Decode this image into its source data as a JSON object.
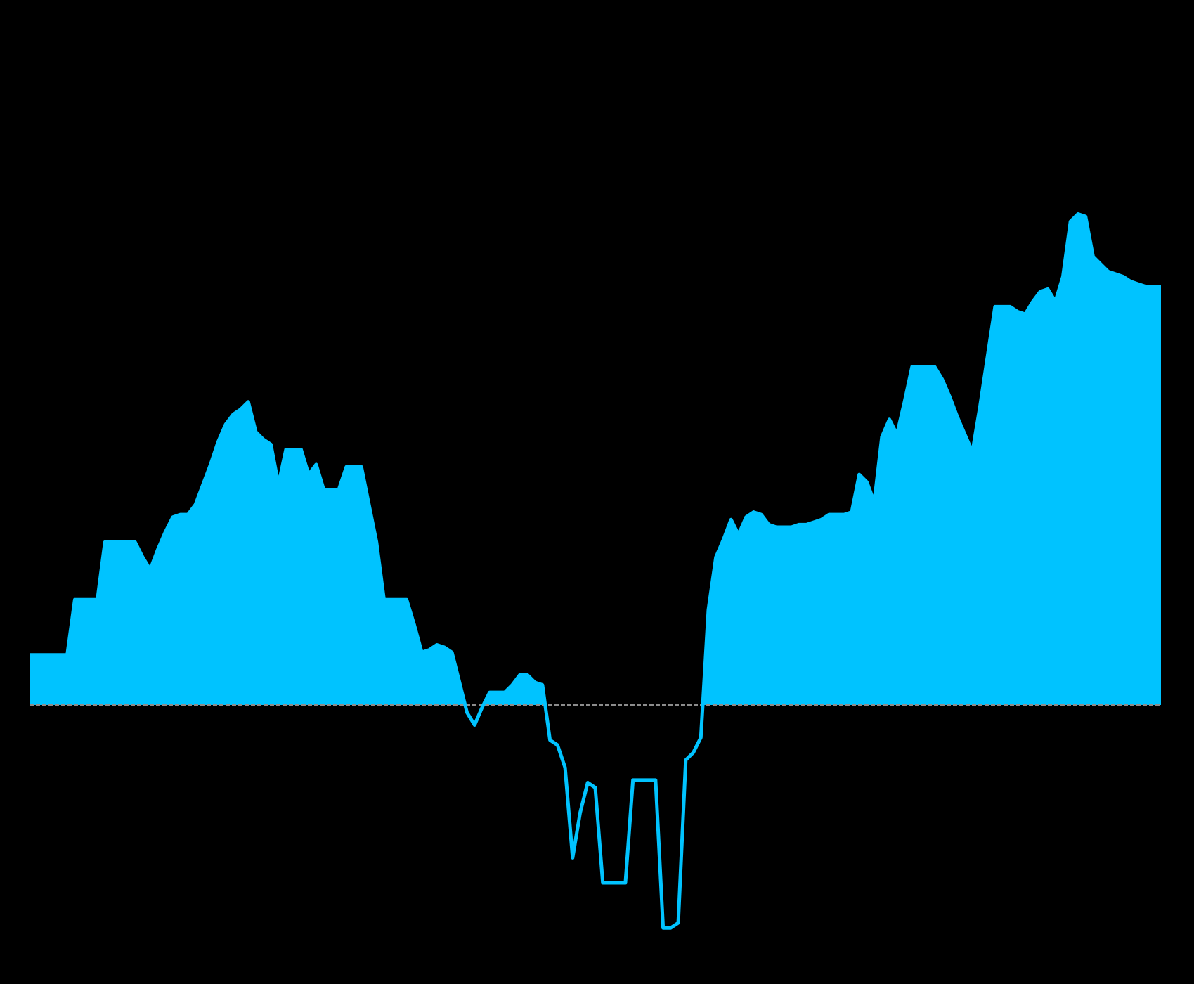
{
  "chart_data": {
    "type": "area",
    "title": "",
    "xlabel": "",
    "ylabel": "",
    "grid": false,
    "legend": "none",
    "colors": {
      "fill": "#00c3ff",
      "line": "#00c3ff",
      "zero_line": "#8c8c8c",
      "background": "#000000"
    },
    "ylim": [
      -100,
      220
    ],
    "series": [
      {
        "values": [
          20,
          20,
          20,
          20,
          20,
          20,
          42,
          42,
          42,
          42,
          65,
          65,
          65,
          65,
          65,
          59,
          54,
          62,
          69,
          75,
          76,
          76,
          80,
          88,
          96,
          105,
          112,
          116,
          118,
          121,
          109,
          106,
          104,
          88,
          102,
          102,
          102,
          92,
          96,
          86,
          86,
          86,
          95,
          95,
          95,
          80,
          65,
          42,
          42,
          42,
          42,
          32,
          21,
          22,
          24,
          23,
          21,
          9,
          -3,
          -8,
          -1,
          5,
          5,
          5,
          8,
          12,
          12,
          9,
          8,
          -14,
          -16,
          -25,
          -61,
          -43,
          -31,
          -33,
          -71,
          -71,
          -71,
          -71,
          -30,
          -30,
          -30,
          -30,
          -89,
          -89,
          -87,
          -22,
          -19,
          -13,
          38,
          59,
          66,
          74,
          68,
          75,
          77,
          76,
          72,
          71,
          71,
          71,
          72,
          72,
          73,
          74,
          76,
          76,
          76,
          77,
          92,
          89,
          81,
          107,
          114,
          108,
          121,
          135,
          135,
          135,
          135,
          130,
          123,
          115,
          108,
          101,
          119,
          139,
          159,
          159,
          159,
          157,
          156,
          161,
          165,
          166,
          161,
          171,
          193,
          196,
          195,
          179,
          176,
          173,
          172,
          171,
          169,
          168,
          167,
          167,
          167
        ],
        "baseline": 0
      }
    ]
  }
}
